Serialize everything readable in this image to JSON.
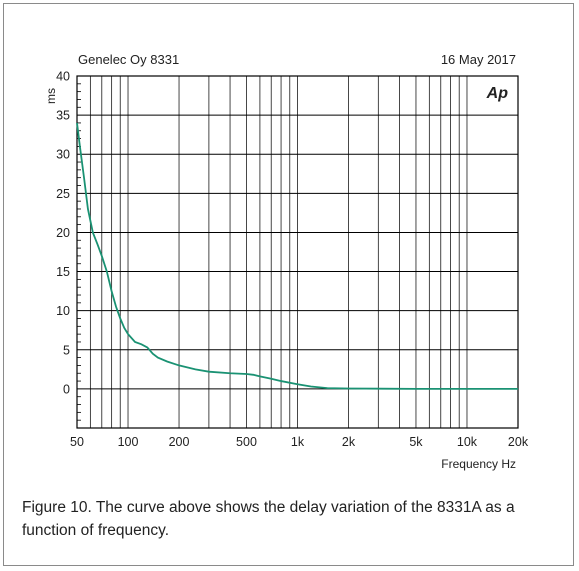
{
  "chart_data": {
    "type": "line",
    "title_left": "Genelec Oy 8331",
    "title_right": "16 May 2017",
    "logo": "Ap",
    "ylabel": "ms",
    "xlabel": "Frequency Hz",
    "x_scale": "log",
    "xlim": [
      50,
      20000
    ],
    "ylim": [
      -5,
      40
    ],
    "grid": true,
    "x_ticks": [
      {
        "value": 50,
        "label": "50"
      },
      {
        "value": 100,
        "label": "100"
      },
      {
        "value": 200,
        "label": "200"
      },
      {
        "value": 500,
        "label": "500"
      },
      {
        "value": 1000,
        "label": "1k"
      },
      {
        "value": 2000,
        "label": "2k"
      },
      {
        "value": 5000,
        "label": "5k"
      },
      {
        "value": 10000,
        "label": "10k"
      },
      {
        "value": 20000,
        "label": "20k"
      }
    ],
    "y_ticks": [
      0,
      5,
      10,
      15,
      20,
      25,
      30,
      35,
      40
    ],
    "series": [
      {
        "color": "#1a9273",
        "x": [
          50,
          52,
          55,
          58,
          62,
          66,
          70,
          75,
          80,
          85,
          90,
          95,
          100,
          110,
          120,
          130,
          140,
          150,
          170,
          200,
          250,
          300,
          400,
          500,
          550,
          600,
          700,
          800,
          1000,
          1200,
          1500,
          2000,
          5000,
          10000,
          20000
        ],
        "y": [
          34,
          31,
          27,
          23,
          20,
          18.5,
          17,
          15,
          12.5,
          10.5,
          9,
          7.8,
          7,
          6,
          5.7,
          5.3,
          4.5,
          4,
          3.5,
          3,
          2.5,
          2.2,
          2,
          1.9,
          1.8,
          1.6,
          1.3,
          1,
          0.6,
          0.3,
          0.1,
          0.05,
          0,
          0,
          0
        ]
      }
    ]
  },
  "caption": "Figure 10. The curve above shows the delay variation of the 8331A as a function of frequency."
}
